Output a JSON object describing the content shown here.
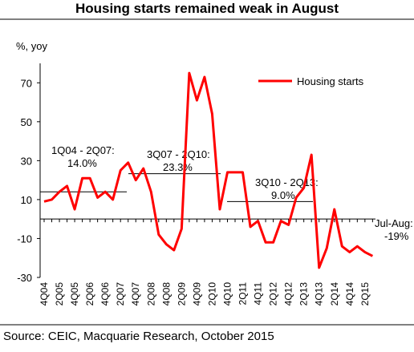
{
  "chart_data": {
    "type": "line",
    "title": "Housing starts remained weak in August",
    "y_axis_label": "%, yoy",
    "source": "Source: CEIC, Macquarie Research, October 2015",
    "categories": [
      "4Q04",
      null,
      "2Q05",
      null,
      "4Q05",
      null,
      "2Q06",
      null,
      "4Q06",
      null,
      "2Q07",
      null,
      "4Q07",
      null,
      "2Q08",
      null,
      "4Q08",
      null,
      "2Q09",
      null,
      "4Q09",
      null,
      "2Q10",
      null,
      "4Q10",
      null,
      "2Q11",
      null,
      "4Q11",
      null,
      "2Q12",
      null,
      "4Q12",
      null,
      "2Q13",
      null,
      "4Q13",
      null,
      "2Q14",
      null,
      "4Q14",
      null,
      "2Q15",
      null
    ],
    "series": [
      {
        "name": "Housing starts",
        "color": "#ff0000",
        "values": [
          9,
          10,
          14,
          17,
          5,
          21,
          21,
          11,
          14,
          10,
          25,
          29,
          20,
          26,
          14,
          -8,
          -13,
          -16,
          -5,
          75,
          61,
          73,
          54,
          5,
          24,
          24,
          24,
          -4,
          -1,
          -12,
          -12,
          -1,
          -3,
          11,
          16,
          33,
          -25,
          -15,
          5,
          -14,
          -17,
          -14,
          -17,
          -19
        ]
      }
    ],
    "ylim": [
      -30,
      80
    ],
    "yticks": [
      -30,
      -10,
      10,
      30,
      50,
      70
    ],
    "legend": "top-right",
    "annotations": [
      {
        "lines": [
          "1Q04 - 2Q07:",
          "14.0%"
        ],
        "value": 14.0
      },
      {
        "lines": [
          "3Q07 - 2Q10:",
          "23.3%"
        ],
        "value": 23.3
      },
      {
        "lines": [
          "3Q10 - 2Q13:",
          "9.0%"
        ],
        "value": 9.0
      },
      {
        "lines": [
          "Jul-Aug:",
          "-19%"
        ]
      }
    ]
  }
}
